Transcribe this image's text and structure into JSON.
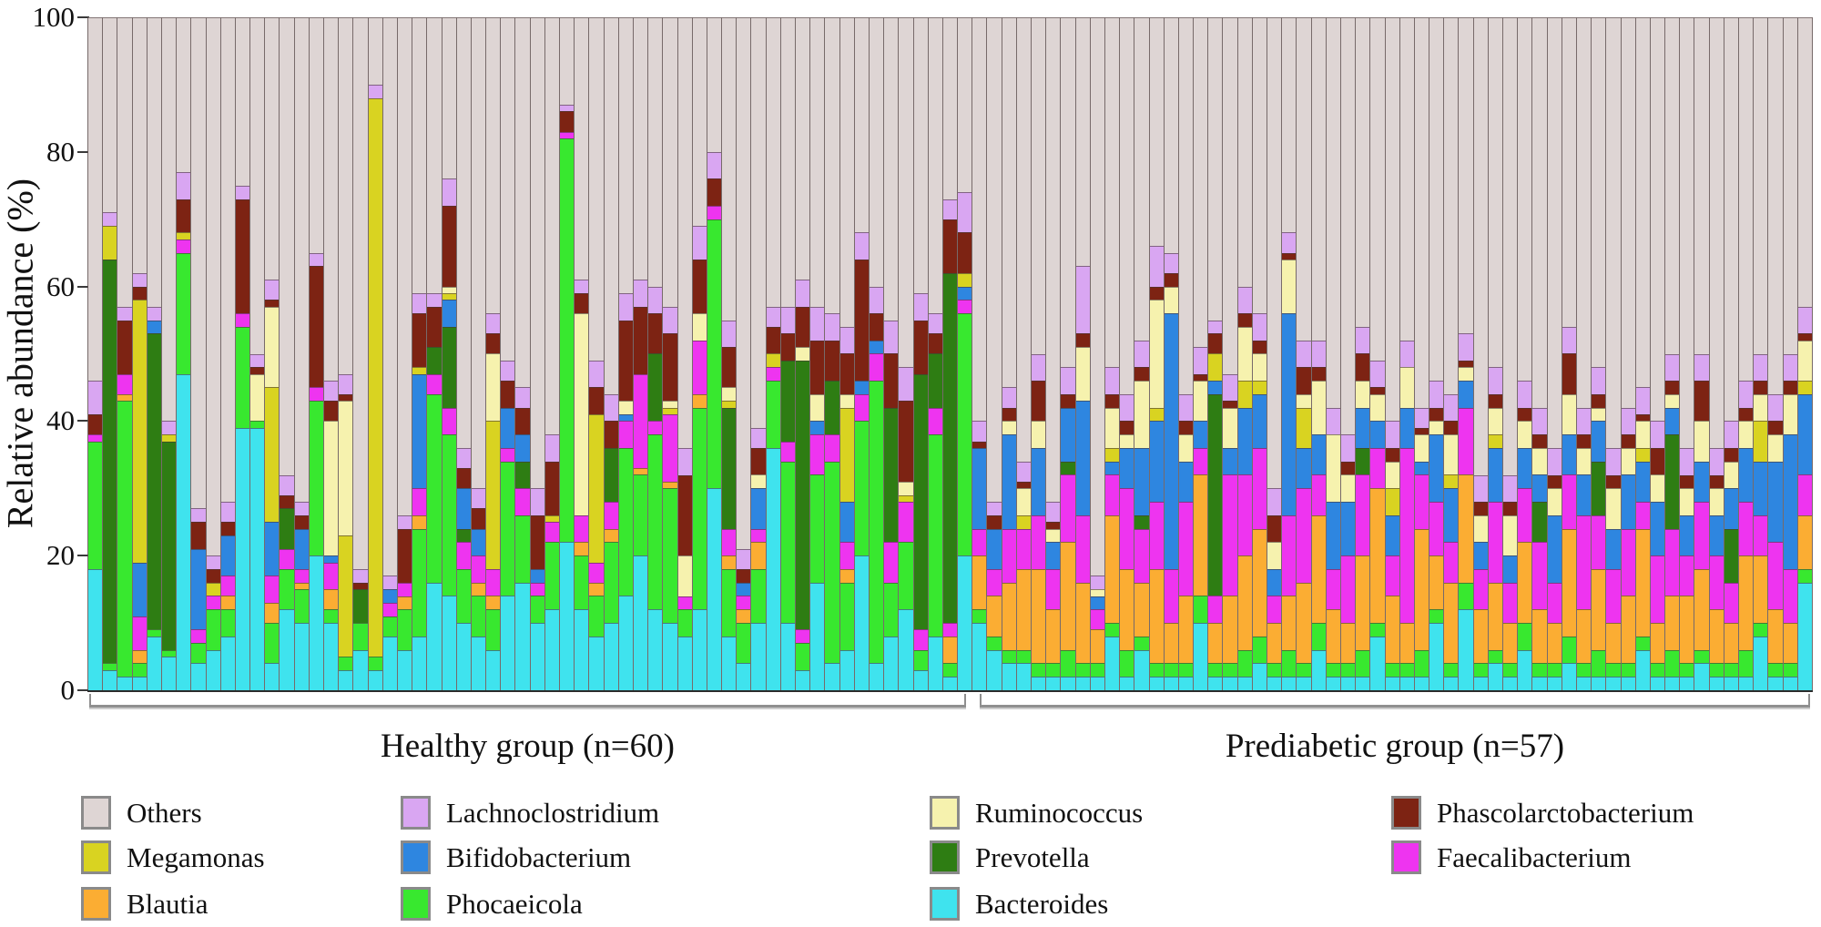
{
  "chart_data": {
    "type": "bar",
    "stacked": true,
    "title": "",
    "ylabel": "Relative abundance (%)",
    "ylim": [
      0,
      100
    ],
    "yticks": [
      0,
      20,
      40,
      60,
      80,
      100
    ],
    "grid": false,
    "legend_position": "bottom",
    "groups": [
      {
        "label": "Healthy group (n=60)",
        "n": 60
      },
      {
        "label": "Prediabetic group (n=57)",
        "n": 57
      }
    ],
    "series": [
      {
        "name": "Bacteroides",
        "color": "#3FE3EE"
      },
      {
        "name": "Phocaeicola",
        "color": "#38E82F"
      },
      {
        "name": "Blautia",
        "color": "#FBAD33"
      },
      {
        "name": "Faecalibacterium",
        "color": "#EE34F0"
      },
      {
        "name": "Prevotella",
        "color": "#2E7D13"
      },
      {
        "name": "Bifidobacterium",
        "color": "#2E86E0"
      },
      {
        "name": "Megamonas",
        "color": "#D9D321"
      },
      {
        "name": "Ruminococcus",
        "color": "#F6F2AE"
      },
      {
        "name": "Phascolarctobacterium",
        "color": "#7D2313"
      },
      {
        "name": "Lachnoclostridium",
        "color": "#D9A6F2"
      }
    ],
    "others": {
      "name": "Others",
      "color": "#DED5D4"
    },
    "note": "Each bar is one subject; segment values are percent relative abundance in series order; Others fills the remainder to 100%.",
    "bars": {
      "healthy": [
        [
          18,
          19,
          0,
          1,
          0,
          0,
          0,
          0,
          3,
          5
        ],
        [
          3,
          1,
          0,
          0,
          60,
          0,
          5,
          0,
          0,
          2
        ],
        [
          2,
          41,
          1,
          3,
          0,
          0,
          0,
          0,
          8,
          2
        ],
        [
          2,
          2,
          2,
          5,
          0,
          8,
          39,
          0,
          2,
          2
        ],
        [
          8,
          1,
          0,
          0,
          44,
          2,
          0,
          0,
          0,
          2
        ],
        [
          5,
          1,
          0,
          0,
          31,
          0,
          1,
          0,
          0,
          2
        ],
        [
          47,
          18,
          0,
          2,
          0,
          0,
          1,
          0,
          5,
          4
        ],
        [
          4,
          3,
          0,
          2,
          0,
          12,
          0,
          0,
          4,
          2
        ],
        [
          6,
          6,
          0,
          2,
          0,
          0,
          2,
          0,
          2,
          2
        ],
        [
          8,
          4,
          2,
          3,
          0,
          6,
          0,
          0,
          2,
          3
        ],
        [
          39,
          15,
          0,
          2,
          0,
          0,
          0,
          0,
          17,
          2
        ],
        [
          39,
          1,
          0,
          0,
          0,
          0,
          0,
          7,
          1,
          2
        ],
        [
          4,
          6,
          3,
          4,
          0,
          8,
          20,
          12,
          1,
          3
        ],
        [
          12,
          6,
          0,
          3,
          6,
          0,
          0,
          0,
          2,
          3
        ],
        [
          10,
          5,
          1,
          2,
          0,
          6,
          0,
          0,
          2,
          2
        ],
        [
          20,
          23,
          0,
          2,
          0,
          0,
          0,
          0,
          18,
          2
        ],
        [
          10,
          2,
          3,
          4,
          0,
          1,
          0,
          20,
          3,
          3
        ],
        [
          3,
          2,
          0,
          0,
          0,
          0,
          18,
          20,
          1,
          3
        ],
        [
          6,
          4,
          0,
          0,
          5,
          0,
          0,
          0,
          1,
          2
        ],
        [
          3,
          2,
          0,
          0,
          0,
          0,
          83,
          0,
          0,
          2
        ],
        [
          8,
          3,
          0,
          2,
          0,
          2,
          0,
          0,
          0,
          2
        ],
        [
          6,
          6,
          2,
          2,
          0,
          0,
          0,
          0,
          8,
          2
        ],
        [
          8,
          16,
          2,
          4,
          0,
          17,
          1,
          0,
          8,
          3
        ],
        [
          16,
          28,
          0,
          3,
          4,
          0,
          0,
          0,
          6,
          2
        ],
        [
          14,
          24,
          0,
          4,
          12,
          4,
          1,
          1,
          12,
          4
        ],
        [
          10,
          8,
          0,
          4,
          2,
          6,
          0,
          0,
          3,
          3
        ],
        [
          8,
          6,
          2,
          4,
          0,
          4,
          0,
          0,
          3,
          3
        ],
        [
          6,
          6,
          2,
          4,
          0,
          0,
          22,
          10,
          3,
          3
        ],
        [
          14,
          20,
          0,
          2,
          0,
          6,
          0,
          0,
          4,
          3
        ],
        [
          16,
          10,
          0,
          4,
          4,
          4,
          0,
          0,
          4,
          3
        ],
        [
          10,
          4,
          0,
          2,
          0,
          2,
          0,
          0,
          8,
          4
        ],
        [
          12,
          10,
          0,
          3,
          0,
          0,
          1,
          0,
          8,
          4
        ],
        [
          22,
          60,
          0,
          1,
          0,
          0,
          0,
          0,
          3,
          1
        ],
        [
          12,
          8,
          2,
          4,
          0,
          0,
          0,
          30,
          3,
          2
        ],
        [
          8,
          6,
          2,
          3,
          0,
          0,
          22,
          0,
          4,
          4
        ],
        [
          10,
          12,
          2,
          4,
          8,
          0,
          0,
          0,
          4,
          4
        ],
        [
          14,
          22,
          0,
          4,
          0,
          1,
          0,
          2,
          12,
          4
        ],
        [
          20,
          12,
          1,
          14,
          0,
          0,
          0,
          0,
          10,
          4
        ],
        [
          12,
          26,
          0,
          2,
          10,
          0,
          0,
          0,
          6,
          4
        ],
        [
          10,
          20,
          1,
          10,
          0,
          0,
          1,
          1,
          10,
          4
        ],
        [
          8,
          4,
          0,
          2,
          0,
          0,
          0,
          6,
          12,
          4
        ],
        [
          12,
          30,
          2,
          8,
          0,
          0,
          0,
          4,
          8,
          5
        ],
        [
          30,
          40,
          0,
          2,
          0,
          0,
          0,
          0,
          4,
          4
        ],
        [
          8,
          10,
          2,
          4,
          18,
          0,
          1,
          2,
          6,
          4
        ],
        [
          4,
          6,
          2,
          2,
          0,
          2,
          0,
          0,
          2,
          3
        ],
        [
          10,
          8,
          4,
          2,
          0,
          6,
          0,
          2,
          4,
          3
        ],
        [
          36,
          10,
          0,
          2,
          0,
          0,
          2,
          0,
          4,
          3
        ],
        [
          10,
          24,
          0,
          3,
          12,
          0,
          0,
          0,
          4,
          4
        ],
        [
          3,
          4,
          0,
          2,
          40,
          0,
          0,
          2,
          6,
          4
        ],
        [
          16,
          16,
          0,
          6,
          0,
          2,
          0,
          4,
          8,
          5
        ],
        [
          4,
          30,
          0,
          4,
          8,
          0,
          0,
          0,
          6,
          4
        ],
        [
          6,
          10,
          2,
          4,
          0,
          6,
          14,
          2,
          6,
          4
        ],
        [
          20,
          20,
          0,
          4,
          0,
          2,
          0,
          0,
          18,
          4
        ],
        [
          4,
          42,
          0,
          4,
          0,
          2,
          0,
          0,
          4,
          4
        ],
        [
          8,
          8,
          0,
          6,
          20,
          0,
          0,
          0,
          8,
          5
        ],
        [
          12,
          10,
          0,
          6,
          0,
          0,
          1,
          2,
          12,
          5
        ],
        [
          3,
          3,
          0,
          3,
          38,
          0,
          0,
          0,
          8,
          4
        ],
        [
          8,
          30,
          0,
          4,
          8,
          0,
          0,
          0,
          3,
          3
        ],
        [
          2,
          2,
          4,
          2,
          52,
          0,
          0,
          0,
          8,
          3
        ],
        [
          20,
          36,
          0,
          2,
          0,
          2,
          2,
          0,
          6,
          6
        ]
      ],
      "prediabetic": [
        [
          10,
          2,
          8,
          4,
          0,
          12,
          0,
          0,
          1,
          3
        ],
        [
          6,
          2,
          6,
          4,
          0,
          6,
          0,
          0,
          2,
          2
        ],
        [
          4,
          2,
          10,
          8,
          0,
          14,
          0,
          2,
          2,
          3
        ],
        [
          4,
          2,
          12,
          6,
          0,
          0,
          2,
          4,
          1,
          3
        ],
        [
          2,
          2,
          14,
          8,
          0,
          10,
          0,
          4,
          6,
          4
        ],
        [
          2,
          2,
          8,
          6,
          0,
          4,
          0,
          2,
          1,
          3
        ],
        [
          2,
          4,
          16,
          10,
          2,
          8,
          0,
          0,
          2,
          4
        ],
        [
          2,
          2,
          12,
          10,
          0,
          17,
          0,
          8,
          2,
          10
        ],
        [
          2,
          2,
          5,
          3,
          0,
          2,
          0,
          1,
          0,
          2
        ],
        [
          8,
          2,
          16,
          6,
          0,
          2,
          2,
          6,
          2,
          4
        ],
        [
          2,
          4,
          12,
          12,
          0,
          6,
          0,
          2,
          2,
          4
        ],
        [
          6,
          2,
          8,
          8,
          2,
          10,
          0,
          10,
          2,
          4
        ],
        [
          2,
          2,
          14,
          10,
          0,
          12,
          2,
          16,
          2,
          6
        ],
        [
          2,
          2,
          6,
          8,
          0,
          38,
          0,
          4,
          2,
          3
        ],
        [
          2,
          2,
          10,
          14,
          0,
          6,
          0,
          4,
          2,
          4
        ],
        [
          10,
          4,
          18,
          4,
          0,
          4,
          0,
          6,
          1,
          4
        ],
        [
          2,
          2,
          6,
          4,
          30,
          2,
          4,
          0,
          3,
          2
        ],
        [
          2,
          2,
          10,
          18,
          0,
          4,
          0,
          6,
          1,
          4
        ],
        [
          2,
          4,
          14,
          12,
          0,
          10,
          4,
          8,
          2,
          4
        ],
        [
          4,
          4,
          16,
          12,
          0,
          8,
          2,
          4,
          2,
          4
        ],
        [
          2,
          2,
          6,
          4,
          0,
          4,
          0,
          4,
          4,
          4
        ],
        [
          2,
          4,
          8,
          12,
          0,
          30,
          0,
          8,
          1,
          3
        ],
        [
          2,
          2,
          12,
          14,
          0,
          6,
          6,
          2,
          4,
          4
        ],
        [
          6,
          4,
          16,
          6,
          0,
          6,
          0,
          8,
          2,
          4
        ],
        [
          2,
          2,
          8,
          6,
          0,
          10,
          0,
          10,
          0,
          4
        ],
        [
          2,
          2,
          6,
          10,
          0,
          8,
          0,
          4,
          2,
          4
        ],
        [
          2,
          4,
          14,
          12,
          4,
          6,
          0,
          4,
          4,
          4
        ],
        [
          8,
          2,
          20,
          6,
          0,
          4,
          0,
          4,
          1,
          4
        ],
        [
          2,
          2,
          10,
          6,
          0,
          6,
          4,
          4,
          2,
          4
        ],
        [
          2,
          2,
          6,
          26,
          0,
          6,
          0,
          6,
          0,
          4
        ],
        [
          2,
          4,
          18,
          8,
          0,
          2,
          0,
          4,
          1,
          3
        ],
        [
          10,
          2,
          8,
          8,
          0,
          10,
          0,
          2,
          2,
          4
        ],
        [
          2,
          2,
          12,
          6,
          0,
          8,
          2,
          6,
          2,
          4
        ],
        [
          12,
          4,
          16,
          10,
          0,
          4,
          0,
          2,
          1,
          4
        ],
        [
          2,
          2,
          8,
          6,
          0,
          4,
          0,
          4,
          2,
          4
        ],
        [
          4,
          2,
          10,
          12,
          0,
          8,
          2,
          4,
          2,
          4
        ],
        [
          2,
          2,
          6,
          6,
          0,
          4,
          0,
          6,
          2,
          4
        ],
        [
          6,
          4,
          12,
          8,
          0,
          6,
          0,
          4,
          2,
          4
        ],
        [
          2,
          2,
          8,
          10,
          6,
          4,
          0,
          4,
          2,
          4
        ],
        [
          2,
          2,
          6,
          6,
          0,
          10,
          0,
          4,
          2,
          4
        ],
        [
          4,
          4,
          16,
          8,
          0,
          6,
          0,
          6,
          6,
          4
        ],
        [
          2,
          2,
          8,
          14,
          0,
          6,
          0,
          4,
          2,
          4
        ],
        [
          2,
          4,
          12,
          8,
          8,
          6,
          0,
          2,
          2,
          4
        ],
        [
          2,
          2,
          6,
          8,
          0,
          6,
          0,
          6,
          2,
          4
        ],
        [
          2,
          2,
          10,
          10,
          0,
          8,
          0,
          4,
          2,
          4
        ],
        [
          6,
          2,
          16,
          4,
          0,
          6,
          2,
          4,
          1,
          4
        ],
        [
          2,
          2,
          6,
          10,
          0,
          8,
          0,
          4,
          4,
          4
        ],
        [
          2,
          4,
          8,
          10,
          14,
          4,
          0,
          2,
          2,
          4
        ],
        [
          2,
          2,
          10,
          6,
          0,
          6,
          0,
          4,
          2,
          4
        ],
        [
          4,
          2,
          12,
          10,
          0,
          6,
          0,
          6,
          6,
          4
        ],
        [
          2,
          2,
          8,
          8,
          0,
          6,
          0,
          4,
          2,
          4
        ],
        [
          2,
          2,
          6,
          6,
          8,
          6,
          0,
          4,
          2,
          4
        ],
        [
          2,
          4,
          14,
          8,
          0,
          8,
          0,
          4,
          2,
          4
        ],
        [
          8,
          2,
          10,
          6,
          0,
          8,
          6,
          4,
          2,
          4
        ],
        [
          2,
          2,
          8,
          10,
          0,
          12,
          0,
          4,
          2,
          4
        ],
        [
          2,
          2,
          6,
          8,
          0,
          20,
          0,
          6,
          2,
          4
        ],
        [
          16,
          2,
          8,
          6,
          0,
          12,
          2,
          6,
          1,
          4
        ]
      ]
    }
  },
  "legend": {
    "columns": [
      [
        "Others",
        "Megamonas",
        "Blautia"
      ],
      [
        "Lachnoclostridium",
        "Bifidobacterium",
        "Phocaeicola"
      ],
      [
        "Ruminococcus",
        "Prevotella",
        "Bacteroides"
      ],
      [
        "Phascolarctobacterium",
        "Faecalibacterium"
      ]
    ]
  }
}
